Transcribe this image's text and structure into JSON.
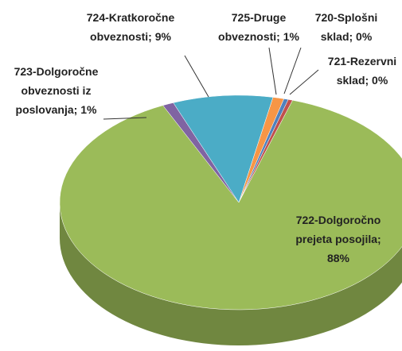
{
  "chart_data": {
    "type": "pie3d",
    "values": [
      1,
      0.4,
      0.4,
      88,
      1,
      9
    ],
    "value_labels": [
      "725-Druge obveznosti; 1%",
      "720-Splošni sklad; 0%",
      "721-Rezervni sklad; 0%",
      "722-Dolgoročno prejeta posojila; 88%",
      "723-Dolgoročne obveznosti iz poslovanja; 1%",
      "724-Kratkoročne obveznosti; 9%"
    ],
    "colors": [
      "#f79646",
      "#4f81bd",
      "#c0504d",
      "#9bbb59",
      "#8064a2",
      "#4bacc6"
    ]
  }
}
